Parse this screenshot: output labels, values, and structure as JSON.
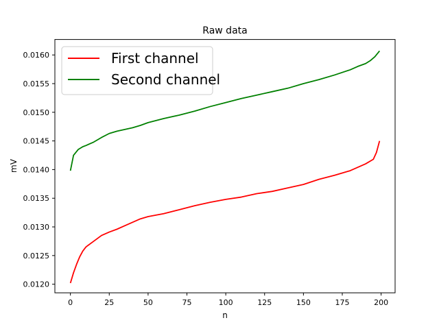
{
  "chart_data": {
    "type": "line",
    "title": "Raw data",
    "xlabel": "n",
    "ylabel": "mV",
    "xlim": [
      -10,
      209
    ],
    "ylim": [
      0.01185,
      0.01627
    ],
    "xticks": [
      0,
      25,
      50,
      75,
      100,
      125,
      150,
      175,
      200
    ],
    "xtick_labels": [
      "0",
      "25",
      "50",
      "75",
      "100",
      "125",
      "150",
      "175",
      "200"
    ],
    "yticks": [
      0.012,
      0.0125,
      0.013,
      0.0135,
      0.014,
      0.0145,
      0.015,
      0.0155,
      0.016
    ],
    "ytick_labels": [
      "0.0120",
      "0.0125",
      "0.0130",
      "0.0135",
      "0.0140",
      "0.0145",
      "0.0150",
      "0.0155",
      "0.0160"
    ],
    "grid": false,
    "legend_position": "top-left",
    "series": [
      {
        "name": "First channel",
        "color": "#ff0000",
        "x": [
          0,
          2,
          4,
          6,
          8,
          10,
          15,
          20,
          25,
          30,
          35,
          40,
          45,
          50,
          60,
          70,
          80,
          90,
          100,
          110,
          120,
          130,
          140,
          150,
          160,
          170,
          180,
          185,
          190,
          195,
          197,
          199
        ],
        "y": [
          0.01202,
          0.0122,
          0.01235,
          0.01248,
          0.01258,
          0.01265,
          0.01275,
          0.01285,
          0.01291,
          0.01296,
          0.01302,
          0.01308,
          0.01314,
          0.01318,
          0.01323,
          0.0133,
          0.01337,
          0.01343,
          0.01348,
          0.01352,
          0.01358,
          0.01362,
          0.01368,
          0.01374,
          0.01383,
          0.0139,
          0.01398,
          0.01404,
          0.0141,
          0.01418,
          0.0143,
          0.0145
        ]
      },
      {
        "name": "Second channel",
        "color": "#008000",
        "x": [
          0,
          2,
          5,
          8,
          10,
          15,
          20,
          25,
          30,
          35,
          40,
          45,
          50,
          60,
          70,
          80,
          90,
          100,
          110,
          120,
          130,
          140,
          150,
          160,
          170,
          180,
          185,
          190,
          193,
          196,
          199
        ],
        "y": [
          0.01398,
          0.01425,
          0.01435,
          0.0144,
          0.01442,
          0.01448,
          0.01456,
          0.01463,
          0.01467,
          0.0147,
          0.01473,
          0.01477,
          0.01482,
          0.01489,
          0.01495,
          0.01502,
          0.0151,
          0.01517,
          0.01524,
          0.0153,
          0.01536,
          0.01542,
          0.0155,
          0.01557,
          0.01565,
          0.01574,
          0.0158,
          0.01585,
          0.0159,
          0.01597,
          0.01607
        ]
      }
    ]
  }
}
